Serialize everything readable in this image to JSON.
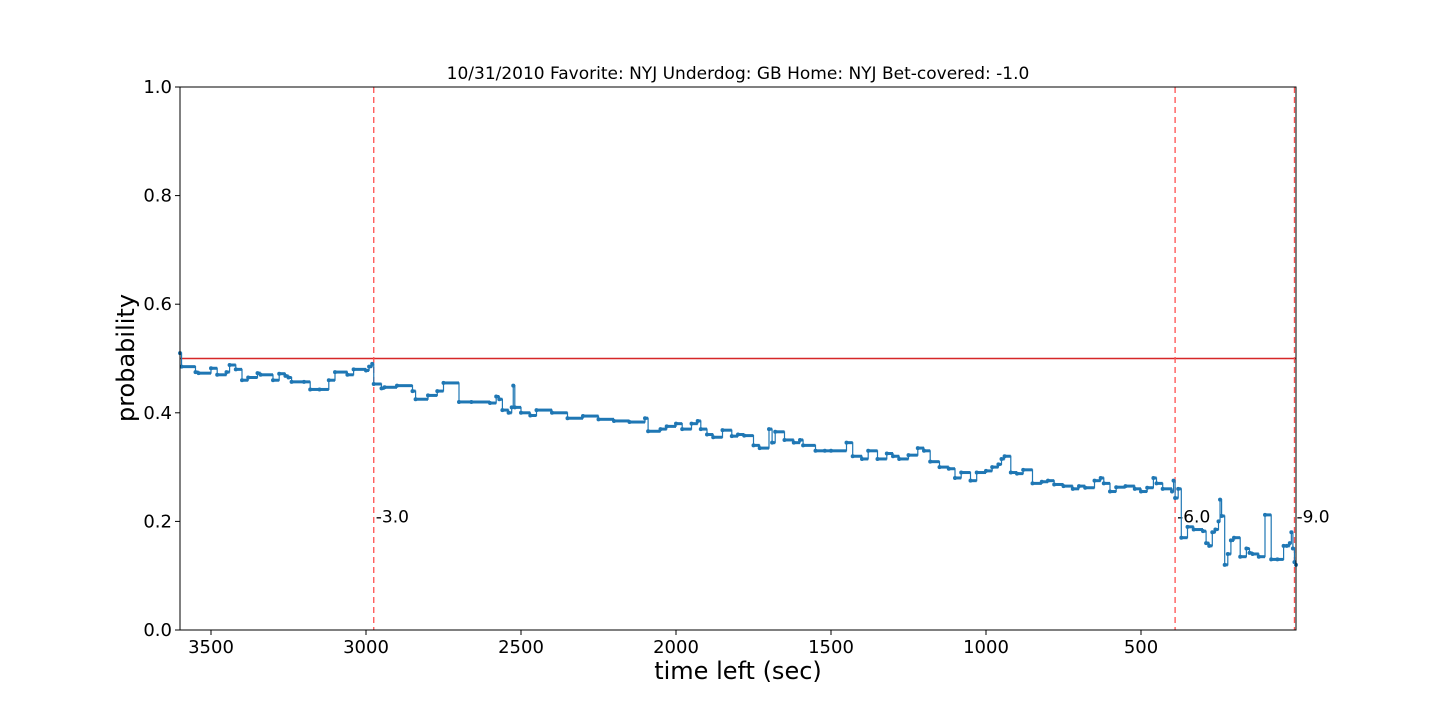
{
  "chart_data": {
    "type": "line",
    "title": "10/31/2010 Favorite: NYJ Underdog: GB Home: NYJ Bet-covered: -1.0",
    "xlabel": "time left (sec)",
    "ylabel": "probability",
    "xlim": [
      3600,
      0
    ],
    "ylim": [
      0.0,
      1.0
    ],
    "x_reversed": true,
    "x_ticks": [
      3500,
      3000,
      2500,
      2000,
      1500,
      1000,
      500
    ],
    "x_tick_labels": [
      "3500",
      "3000",
      "2500",
      "2000",
      "1500",
      "1000",
      "500"
    ],
    "y_ticks": [
      0.0,
      0.2,
      0.4,
      0.6,
      0.8,
      1.0
    ],
    "y_tick_labels": [
      "0.0",
      "0.2",
      "0.4",
      "0.6",
      "0.8",
      "1.0"
    ],
    "grid": false,
    "series": [
      {
        "color": "#1f77b4",
        "x": [
          3600,
          3595,
          3550,
          3540,
          3500,
          3480,
          3450,
          3440,
          3420,
          3400,
          3380,
          3350,
          3340,
          3300,
          3280,
          3260,
          3250,
          3240,
          3200,
          3180,
          3150,
          3120,
          3100,
          3060,
          3040,
          3000,
          2990,
          2980,
          2975,
          2950,
          2940,
          2900,
          2850,
          2840,
          2800,
          2770,
          2750,
          2700,
          2660,
          2600,
          2580,
          2570,
          2560,
          2540,
          2530,
          2525,
          2520,
          2500,
          2470,
          2450,
          2400,
          2350,
          2300,
          2250,
          2200,
          2150,
          2100,
          2090,
          2050,
          2030,
          2000,
          1980,
          1950,
          1930,
          1920,
          1900,
          1880,
          1850,
          1820,
          1800,
          1780,
          1750,
          1730,
          1700,
          1690,
          1680,
          1650,
          1620,
          1600,
          1590,
          1550,
          1520,
          1500,
          1450,
          1430,
          1400,
          1380,
          1350,
          1320,
          1300,
          1280,
          1250,
          1220,
          1200,
          1180,
          1150,
          1120,
          1100,
          1080,
          1050,
          1030,
          1000,
          980,
          960,
          950,
          940,
          920,
          900,
          880,
          850,
          820,
          800,
          780,
          750,
          720,
          700,
          680,
          650,
          630,
          620,
          600,
          580,
          550,
          520,
          500,
          480,
          460,
          450,
          430,
          400,
          395,
          390,
          380,
          370,
          350,
          330,
          300,
          290,
          280,
          270,
          260,
          250,
          245,
          240,
          230,
          220,
          210,
          200,
          180,
          160,
          150,
          140,
          120,
          100,
          80,
          60,
          40,
          30,
          20,
          15,
          10,
          5,
          0
        ],
        "y": [
          0.51,
          0.485,
          0.475,
          0.473,
          0.482,
          0.47,
          0.475,
          0.488,
          0.48,
          0.46,
          0.465,
          0.473,
          0.47,
          0.46,
          0.472,
          0.468,
          0.465,
          0.457,
          0.457,
          0.443,
          0.443,
          0.46,
          0.475,
          0.47,
          0.48,
          0.478,
          0.485,
          0.49,
          0.453,
          0.445,
          0.447,
          0.45,
          0.44,
          0.425,
          0.432,
          0.44,
          0.455,
          0.42,
          0.42,
          0.418,
          0.43,
          0.425,
          0.405,
          0.4,
          0.41,
          0.45,
          0.41,
          0.4,
          0.395,
          0.405,
          0.4,
          0.39,
          0.394,
          0.388,
          0.385,
          0.383,
          0.39,
          0.366,
          0.37,
          0.375,
          0.38,
          0.37,
          0.38,
          0.385,
          0.37,
          0.36,
          0.355,
          0.368,
          0.357,
          0.36,
          0.358,
          0.34,
          0.335,
          0.37,
          0.345,
          0.365,
          0.35,
          0.345,
          0.35,
          0.34,
          0.33,
          0.33,
          0.33,
          0.345,
          0.32,
          0.315,
          0.33,
          0.315,
          0.325,
          0.32,
          0.315,
          0.322,
          0.335,
          0.33,
          0.31,
          0.3,
          0.297,
          0.28,
          0.29,
          0.275,
          0.29,
          0.293,
          0.3,
          0.305,
          0.315,
          0.32,
          0.29,
          0.288,
          0.295,
          0.27,
          0.273,
          0.275,
          0.268,
          0.265,
          0.26,
          0.265,
          0.262,
          0.275,
          0.28,
          0.27,
          0.255,
          0.263,
          0.265,
          0.26,
          0.255,
          0.262,
          0.28,
          0.27,
          0.26,
          0.255,
          0.275,
          0.243,
          0.26,
          0.17,
          0.19,
          0.185,
          0.182,
          0.16,
          0.155,
          0.18,
          0.185,
          0.2,
          0.24,
          0.21,
          0.12,
          0.14,
          0.165,
          0.17,
          0.135,
          0.15,
          0.142,
          0.14,
          0.135,
          0.212,
          0.13,
          0.13,
          0.155,
          0.155,
          0.16,
          0.18,
          0.15,
          0.125,
          0.12
        ]
      }
    ],
    "hlines": [
      {
        "y": 0.5,
        "color": "#d62728",
        "style": "solid"
      }
    ],
    "vlines": [
      {
        "x": 2975,
        "label": "-3.0",
        "color": "#ff5050",
        "style": "dashed"
      },
      {
        "x": 390,
        "label": "-6.0",
        "color": "#ff5050",
        "style": "dashed"
      },
      {
        "x": 5,
        "label": "-9.0",
        "color": "#ff5050",
        "style": "dashed"
      }
    ],
    "vline_label_y": 0.2
  }
}
